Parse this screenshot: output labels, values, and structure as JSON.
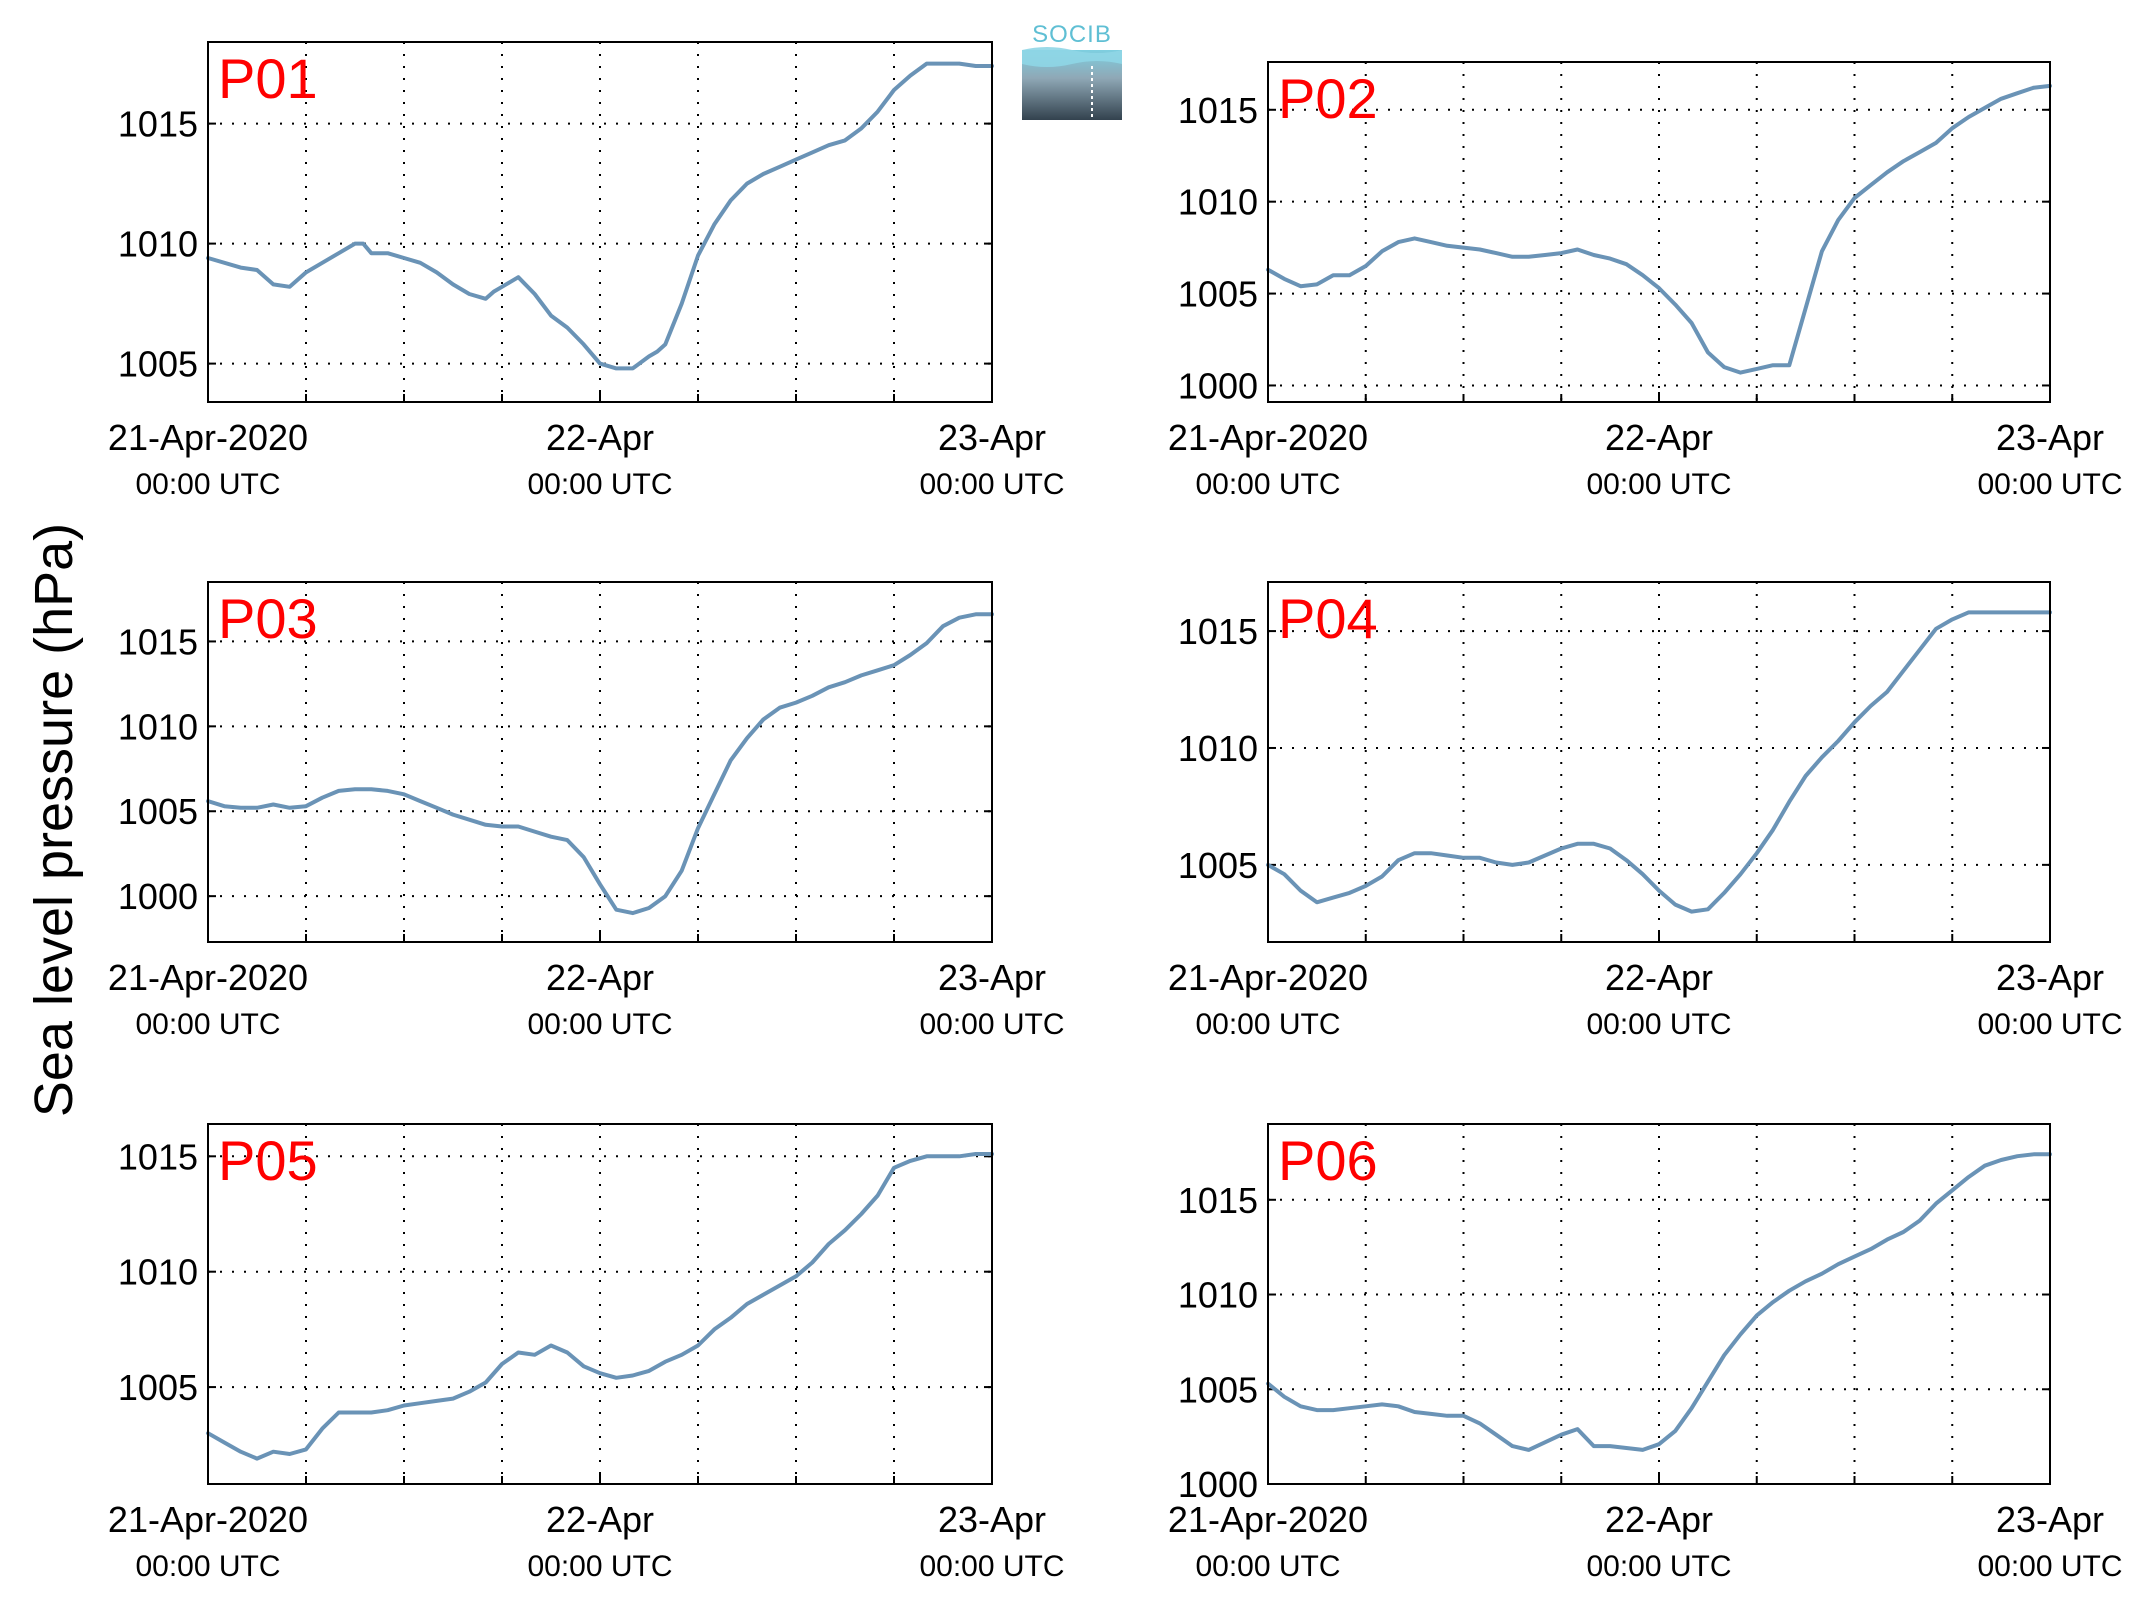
{
  "figure": {
    "ylabel": "Sea level pressure (hPa)",
    "logo_text": "SOCIB",
    "colors": {
      "line": "#6a93b6",
      "label": "#ff0000",
      "axis": "#000000"
    }
  },
  "chart_data": [
    {
      "type": "line",
      "label": "P01",
      "x_ticks": [
        {
          "top": "21-Apr-2020",
          "bottom": "00:00 UTC"
        },
        {
          "top": "22-Apr",
          "bottom": "00:00 UTC"
        },
        {
          "top": "23-Apr",
          "bottom": "00:00 UTC"
        }
      ],
      "xlim": [
        0,
        48
      ],
      "ylim": [
        1003.4,
        1018.4
      ],
      "yticks": [
        1005,
        1010,
        1015
      ],
      "grid": true,
      "x": [
        0,
        2,
        3,
        4,
        5,
        6,
        7,
        8,
        9,
        9.5,
        10,
        11,
        12,
        13,
        14,
        15,
        16,
        17,
        17.5,
        18,
        19,
        20,
        21,
        22,
        23,
        24,
        25,
        26,
        27,
        27.5,
        28,
        29,
        30,
        31,
        32,
        33,
        34,
        35,
        36,
        37,
        38,
        39,
        40,
        41,
        42,
        43,
        44,
        45,
        46,
        47,
        48
      ],
      "y": [
        1009.4,
        1009.0,
        1008.9,
        1008.3,
        1008.2,
        1008.8,
        1009.2,
        1009.6,
        1010.0,
        1010.0,
        1009.6,
        1009.6,
        1009.4,
        1009.2,
        1008.8,
        1008.3,
        1007.9,
        1007.7,
        1008.0,
        1008.2,
        1008.6,
        1007.9,
        1007.0,
        1006.5,
        1005.8,
        1005.0,
        1004.8,
        1004.8,
        1005.3,
        1005.5,
        1005.8,
        1007.5,
        1009.5,
        1010.8,
        1011.8,
        1012.5,
        1012.9,
        1013.2,
        1013.5,
        1013.8,
        1014.1,
        1014.3,
        1014.8,
        1015.5,
        1016.4,
        1017.0,
        1017.5,
        1017.5,
        1017.5,
        1017.4,
        1017.4
      ]
    },
    {
      "type": "line",
      "label": "P02",
      "x_ticks": [
        {
          "top": "21-Apr-2020",
          "bottom": "00:00 UTC"
        },
        {
          "top": "22-Apr",
          "bottom": "00:00 UTC"
        },
        {
          "top": "23-Apr",
          "bottom": "00:00 UTC"
        }
      ],
      "xlim": [
        0,
        48
      ],
      "ylim": [
        999.1,
        1017.6
      ],
      "yticks": [
        1000,
        1005,
        1010,
        1015
      ],
      "grid": true,
      "x": [
        0,
        1,
        2,
        3,
        4,
        5,
        6,
        7,
        8,
        9,
        10,
        11,
        12,
        13,
        14,
        15,
        16,
        17,
        18,
        19,
        20,
        21,
        22,
        23,
        24,
        25,
        26,
        27,
        28,
        29,
        30,
        31,
        32,
        33,
        34,
        35,
        36,
        37,
        38,
        39,
        40,
        41,
        42,
        43,
        44,
        45,
        46,
        47,
        48
      ],
      "y": [
        1006.3,
        1005.8,
        1005.4,
        1005.5,
        1006.0,
        1006.0,
        1006.5,
        1007.3,
        1007.8,
        1008.0,
        1007.8,
        1007.6,
        1007.5,
        1007.4,
        1007.2,
        1007.0,
        1007.0,
        1007.1,
        1007.2,
        1007.4,
        1007.1,
        1006.9,
        1006.6,
        1006.0,
        1005.3,
        1004.4,
        1003.4,
        1001.8,
        1001.0,
        1000.7,
        1000.9,
        1001.1,
        1001.1,
        1004.2,
        1007.3,
        1009.0,
        1010.2,
        1010.9,
        1011.6,
        1012.2,
        1012.7,
        1013.2,
        1014.0,
        1014.6,
        1015.1,
        1015.6,
        1015.9,
        1016.2,
        1016.3
      ]
    },
    {
      "type": "line",
      "label": "P03",
      "x_ticks": [
        {
          "top": "21-Apr-2020",
          "bottom": "00:00 UTC"
        },
        {
          "top": "22-Apr",
          "bottom": "00:00 UTC"
        },
        {
          "top": "23-Apr",
          "bottom": "00:00 UTC"
        }
      ],
      "xlim": [
        0,
        48
      ],
      "ylim": [
        997.3,
        1018.5
      ],
      "yticks": [
        1000,
        1005,
        1010,
        1015
      ],
      "grid": true,
      "x": [
        0,
        1,
        2,
        3,
        4,
        5,
        6,
        7,
        8,
        9,
        10,
        11,
        12,
        13,
        14,
        15,
        16,
        17,
        18,
        19,
        20,
        21,
        22,
        23,
        24,
        25,
        26,
        27,
        28,
        29,
        30,
        31,
        32,
        33,
        34,
        35,
        36,
        37,
        38,
        39,
        40,
        41,
        42,
        43,
        44,
        45,
        46,
        47,
        48
      ],
      "y": [
        1005.6,
        1005.3,
        1005.2,
        1005.2,
        1005.4,
        1005.2,
        1005.3,
        1005.8,
        1006.2,
        1006.3,
        1006.3,
        1006.2,
        1006.0,
        1005.6,
        1005.2,
        1004.8,
        1004.5,
        1004.2,
        1004.1,
        1004.1,
        1003.8,
        1003.5,
        1003.3,
        1002.3,
        1000.7,
        999.2,
        999.0,
        999.3,
        1000.0,
        1001.5,
        1004.0,
        1006.0,
        1008.0,
        1009.3,
        1010.4,
        1011.1,
        1011.4,
        1011.8,
        1012.3,
        1012.6,
        1013.0,
        1013.3,
        1013.6,
        1014.2,
        1014.9,
        1015.9,
        1016.4,
        1016.6,
        1016.6
      ]
    },
    {
      "type": "line",
      "label": "P04",
      "x_ticks": [
        {
          "top": "21-Apr-2020",
          "bottom": "00:00 UTC"
        },
        {
          "top": "22-Apr",
          "bottom": "00:00 UTC"
        },
        {
          "top": "23-Apr",
          "bottom": "00:00 UTC"
        }
      ],
      "xlim": [
        0,
        48
      ],
      "ylim": [
        1001.7,
        1017.1
      ],
      "yticks": [
        1005,
        1010,
        1015
      ],
      "grid": true,
      "x": [
        0,
        1,
        2,
        3,
        4,
        5,
        6,
        7,
        8,
        9,
        10,
        11,
        12,
        13,
        14,
        15,
        16,
        17,
        18,
        19,
        20,
        21,
        22,
        23,
        24,
        25,
        26,
        27,
        28,
        29,
        30,
        31,
        32,
        33,
        34,
        35,
        36,
        37,
        38,
        39,
        40,
        41,
        42,
        43,
        44,
        45,
        46,
        47,
        48
      ],
      "y": [
        1005.0,
        1004.6,
        1003.9,
        1003.4,
        1003.6,
        1003.8,
        1004.1,
        1004.5,
        1005.2,
        1005.5,
        1005.5,
        1005.4,
        1005.3,
        1005.3,
        1005.1,
        1005.0,
        1005.1,
        1005.4,
        1005.7,
        1005.9,
        1005.9,
        1005.7,
        1005.2,
        1004.6,
        1003.9,
        1003.3,
        1003.0,
        1003.1,
        1003.8,
        1004.6,
        1005.5,
        1006.5,
        1007.7,
        1008.8,
        1009.6,
        1010.3,
        1011.1,
        1011.8,
        1012.4,
        1013.3,
        1014.2,
        1015.1,
        1015.5,
        1015.8,
        1015.8,
        1015.8,
        1015.8,
        1015.8,
        1015.8
      ]
    },
    {
      "type": "line",
      "label": "P05",
      "x_ticks": [
        {
          "top": "21-Apr-2020",
          "bottom": "00:00 UTC"
        },
        {
          "top": "22-Apr",
          "bottom": "00:00 UTC"
        },
        {
          "top": "23-Apr",
          "bottom": "00:00 UTC"
        }
      ],
      "xlim": [
        0,
        48
      ],
      "ylim": [
        1000.8,
        1016.4
      ],
      "yticks": [
        1005,
        1010,
        1015
      ],
      "grid": true,
      "x": [
        0,
        1,
        2,
        3,
        4,
        5,
        6,
        7,
        8,
        9,
        10,
        11,
        12,
        13,
        14,
        15,
        16,
        17,
        18,
        19,
        20,
        21,
        22,
        23,
        24,
        25,
        26,
        27,
        28,
        29,
        30,
        31,
        32,
        33,
        34,
        35,
        36,
        37,
        38,
        39,
        40,
        41,
        42,
        43,
        44,
        45,
        46,
        47,
        48
      ],
      "y": [
        1003.0,
        1002.6,
        1002.2,
        1001.9,
        1002.2,
        1002.1,
        1002.3,
        1003.2,
        1003.9,
        1003.9,
        1003.9,
        1004.0,
        1004.2,
        1004.3,
        1004.4,
        1004.5,
        1004.8,
        1005.2,
        1006.0,
        1006.5,
        1006.4,
        1006.8,
        1006.5,
        1005.9,
        1005.6,
        1005.4,
        1005.5,
        1005.7,
        1006.1,
        1006.4,
        1006.8,
        1007.5,
        1008.0,
        1008.6,
        1009.0,
        1009.4,
        1009.8,
        1010.4,
        1011.2,
        1011.8,
        1012.5,
        1013.3,
        1014.5,
        1014.8,
        1015.0,
        1015.0,
        1015.0,
        1015.1,
        1015.1
      ]
    },
    {
      "type": "line",
      "label": "P06",
      "x_ticks": [
        {
          "top": "21-Apr-2020",
          "bottom": "00:00 UTC"
        },
        {
          "top": "22-Apr",
          "bottom": "00:00 UTC"
        },
        {
          "top": "23-Apr",
          "bottom": "00:00 UTC"
        }
      ],
      "xlim": [
        0,
        48
      ],
      "ylim": [
        1000.0,
        1019.0
      ],
      "yticks": [
        1000,
        1005,
        1010,
        1015
      ],
      "grid": true,
      "x": [
        0,
        1,
        2,
        3,
        4,
        5,
        6,
        7,
        8,
        9,
        10,
        11,
        12,
        13,
        14,
        15,
        16,
        17,
        18,
        19,
        20,
        21,
        22,
        23,
        24,
        25,
        26,
        27,
        28,
        29,
        30,
        31,
        32,
        33,
        34,
        35,
        36,
        37,
        38,
        39,
        40,
        41,
        42,
        43,
        44,
        45,
        46,
        47,
        48
      ],
      "y": [
        1005.3,
        1004.6,
        1004.1,
        1003.9,
        1003.9,
        1004.0,
        1004.1,
        1004.2,
        1004.1,
        1003.8,
        1003.7,
        1003.6,
        1003.6,
        1003.2,
        1002.6,
        1002.0,
        1001.8,
        1002.2,
        1002.6,
        1002.9,
        1002.0,
        1002.0,
        1001.9,
        1001.8,
        1002.1,
        1002.8,
        1004.0,
        1005.4,
        1006.8,
        1007.9,
        1008.9,
        1009.6,
        1010.2,
        1010.7,
        1011.1,
        1011.6,
        1012.0,
        1012.4,
        1012.9,
        1013.3,
        1013.9,
        1014.8,
        1015.5,
        1016.2,
        1016.8,
        1017.1,
        1017.3,
        1017.4,
        1017.4
      ]
    }
  ]
}
